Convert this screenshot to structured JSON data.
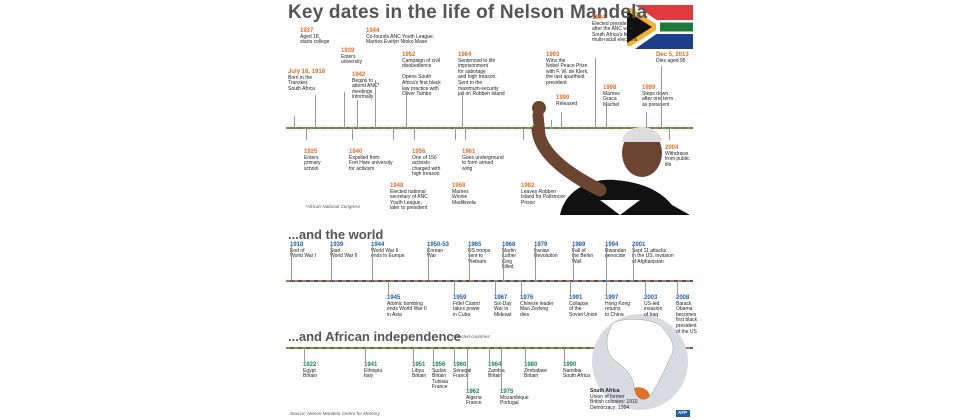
{
  "title": "Key dates in the life of Nelson Mandela",
  "flag_colors": {
    "green": "#1d7a3c",
    "red": "#e03a3e",
    "blue": "#1d3f8a",
    "gold": "#f3b32d",
    "black": "#111111",
    "white": "#ffffff"
  },
  "life": [
    {
      "year": "July 18, 1918",
      "text": "Born in the\nTranskei,\nSouth Africa"
    },
    {
      "year": "1937",
      "text": "Aged 18,\nstarts college"
    },
    {
      "year": "1939",
      "text": "Enters\nuniversity"
    },
    {
      "year": "1942",
      "text": "Begins to\nattend ANC*\nmeetings\ninformally"
    },
    {
      "year": "1944",
      "text": "Co-founds ANC Youth League.\nMarries Evelyn Ntoko Mase"
    },
    {
      "year": "1952",
      "text": "Campaign of civil\ndisobedience\n\nOpens South\nAfrica's first black\nlaw practice with\nOliver Tambo"
    },
    {
      "year": "1964",
      "text": "Sentenced to life\nimprisonment\nfor sabotage\nand high treason.\nSent to the\nmaximum-security\njail on Robben Island"
    },
    {
      "year": "1993",
      "text": "Wins the\nNobel Peace Prize\nwith F. W. de Klerk,\nthe last apartheid\npresident"
    },
    {
      "year": "1990",
      "text": "Released"
    },
    {
      "year": "1994",
      "text": "Elected president\nafter the ANC wins\nSouth Africa's first\nmulti-racial elections"
    },
    {
      "year": "1998",
      "text": "Marries\nGraca\nMachel"
    },
    {
      "year": "1999",
      "text": "Steps down\nafter one term\nas president"
    },
    {
      "year": "Dec 5, 2013",
      "text": "Dies aged 95"
    },
    {
      "year": "1925",
      "text": "Enters\nprimary\nschool"
    },
    {
      "year": "1940",
      "text": "Expelled from\nFort Hare university\nfor activism"
    },
    {
      "year": "1956",
      "text": "One of 156\nactivists\ncharged with\nhigh treason"
    },
    {
      "year": "1948",
      "text": "Elected national\nsecretary of ANC\nYouth League,\nlater to president"
    },
    {
      "year": "1958",
      "text": "Marries\nWinnie\nMadikizela"
    },
    {
      "year": "1961",
      "text": "Goes underground\nto form armed\nwing"
    },
    {
      "year": "1982",
      "text": "Leaves Robben\nIsland for Pollsmoor\nPrison"
    },
    {
      "year": "2004",
      "text": "Withdraws\nfrom public\nlife"
    }
  ],
  "footnote": "*African National Congress",
  "world_title": "...and the world",
  "world": [
    {
      "year": "1918",
      "text": "End of\nWorld War I"
    },
    {
      "year": "1939",
      "text": "Start\nWorld War II"
    },
    {
      "year": "1944",
      "text": "World War II\nends in Europe"
    },
    {
      "year": "1950-53",
      "text": "Korean\nWar"
    },
    {
      "year": "1965",
      "text": "US troops\nsent to\nVietnam"
    },
    {
      "year": "1968",
      "text": "Martin\nLuther\nKing\nkilled"
    },
    {
      "year": "1979",
      "text": "Iranian\nRevolution"
    },
    {
      "year": "1989",
      "text": "Fall of\nthe Berlin\nWall"
    },
    {
      "year": "1994",
      "text": "Rwandan\ngenocide"
    },
    {
      "year": "2001",
      "text": "Sept 11 attacks\nin the US, invasion\nof Afghanistan"
    },
    {
      "year": "1945",
      "text": "Atomic bombing\nends World War II\nin Asia"
    },
    {
      "year": "1959",
      "text": "Fidel Castro\ntakes power\nin Cuba"
    },
    {
      "year": "1967",
      "text": "Six-Day\nWar in\nMideast"
    },
    {
      "year": "1976",
      "text": "Chinese leader\nMao Zedong\ndies"
    },
    {
      "year": "1991",
      "text": "Collapse\nof the\nSoviet Union"
    },
    {
      "year": "1997",
      "text": "Hong Kong\nreturns\nto China"
    },
    {
      "year": "2003",
      "text": "US-led\ninvasion\nof Iraq"
    },
    {
      "year": "2008",
      "text": "Barack\nObama\nbecomes\nfirst black\npresident\nof the US"
    }
  ],
  "africa_title": "...and African independence",
  "africa_note": "Selected countries",
  "africa": [
    {
      "year": "1922",
      "text": "Egypt\nBritain"
    },
    {
      "year": "1941",
      "text": "Ethiopia\nItaly"
    },
    {
      "year": "1951",
      "text": "Libya\nBritain"
    },
    {
      "year": "1956",
      "text": "Sudan\nBritain\nTunisia\nFrance"
    },
    {
      "year": "1960",
      "text": "Senegal\nFrance"
    },
    {
      "year": "1962",
      "text": "Algeria\nFrance"
    },
    {
      "year": "1964",
      "text": "Zambia\nBritain"
    },
    {
      "year": "1975",
      "text": "Mozambique\nPortugal"
    },
    {
      "year": "1980",
      "text": "Zimbabwe\nBritain"
    },
    {
      "year": "1990",
      "text": "Namibia\nSouth Africa"
    }
  ],
  "south_africa": {
    "title": "South Africa",
    "text": "Union of former\nBritish colonies: 1910\nDemocracy: 1994"
  },
  "source": "Source: Nelson Mandela Centre for Memory",
  "agency": "AFP"
}
